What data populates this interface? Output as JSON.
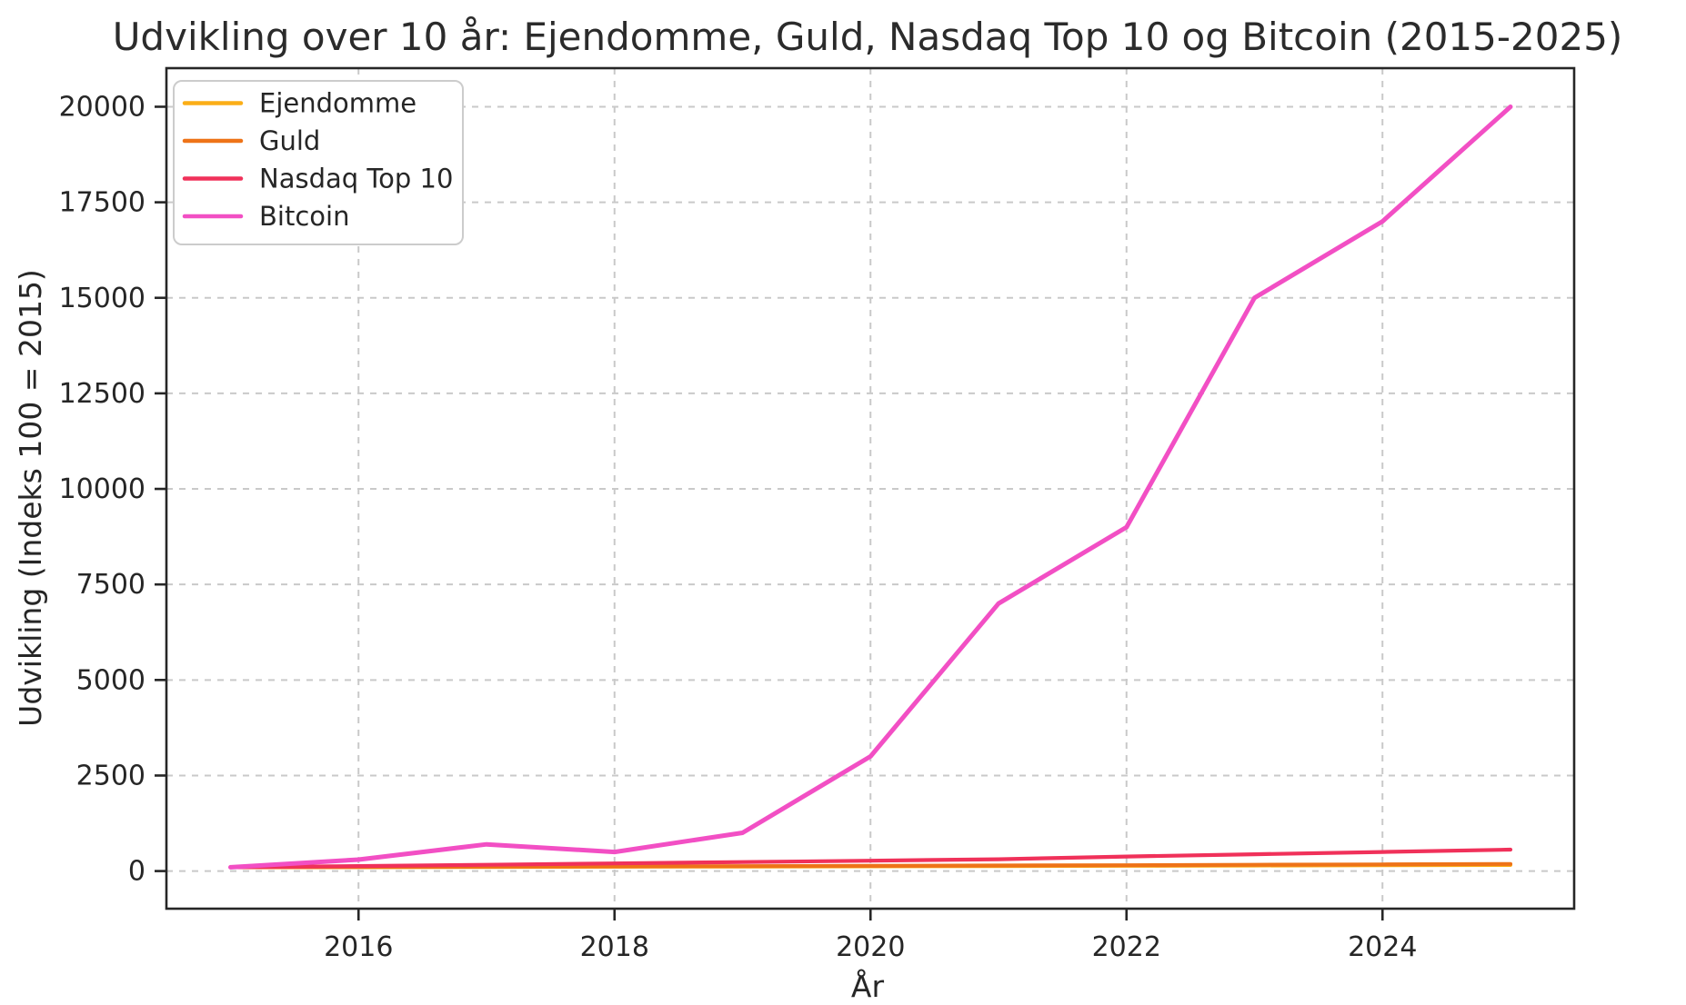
{
  "title": "Udvikling over 10 år: Ejendomme, Guld, Nasdaq Top 10 og Bitcoin (2015-2025)",
  "chart_data": {
    "type": "line",
    "title": "Udvikling over 10 år: Ejendomme, Guld, Nasdaq Top 10 og Bitcoin (2015-2025)",
    "xlabel": "År",
    "ylabel": "Udvikling (Indeks 100 = 2015)",
    "x": [
      2015,
      2016,
      2017,
      2018,
      2019,
      2020,
      2021,
      2022,
      2023,
      2024,
      2025
    ],
    "x_ticks": [
      2016,
      2018,
      2020,
      2022,
      2024
    ],
    "y_ticks": [
      0,
      2500,
      5000,
      7500,
      10000,
      12500,
      15000,
      17500,
      20000
    ],
    "ylim": [
      -900,
      21000
    ],
    "grid": "dashed",
    "legend_position": "upper-left",
    "series": [
      {
        "name": "Ejendomme",
        "color": "#FBAE17",
        "values": [
          100,
          103,
          108,
          113,
          118,
          124,
          130,
          137,
          144,
          152,
          160
        ]
      },
      {
        "name": "Guld",
        "color": "#EE7318",
        "values": [
          100,
          107,
          114,
          122,
          128,
          136,
          145,
          152,
          163,
          174,
          185
        ]
      },
      {
        "name": "Nasdaq Top 10",
        "color": "#F0315A",
        "values": [
          100,
          130,
          165,
          200,
          235,
          270,
          310,
          380,
          440,
          500,
          560
        ]
      },
      {
        "name": "Bitcoin",
        "color": "#F24FC4",
        "values": [
          100,
          300,
          700,
          500,
          1000,
          3000,
          7000,
          9000,
          15000,
          17000,
          20000
        ]
      }
    ]
  },
  "colors": {
    "text": "#262626",
    "title_text": "#2b2b2b",
    "grid": "#c9c9c9",
    "spine": "#262626",
    "background": "#ffffff",
    "legend_border": "#cccccc",
    "legend_background": "#ffffff"
  }
}
